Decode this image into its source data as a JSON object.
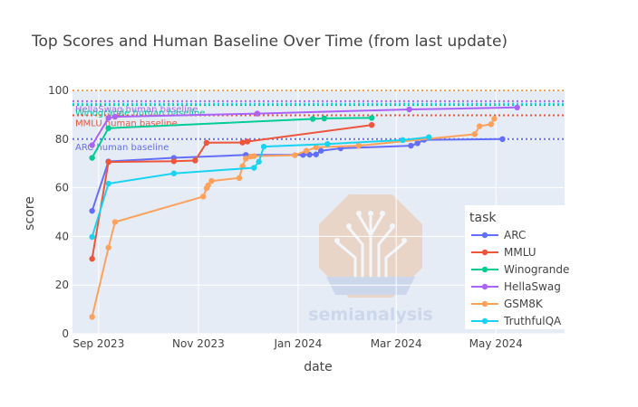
{
  "chart_data": {
    "type": "line",
    "title": "Top Scores and Human Baseline Over Time (from last update)",
    "xlabel": "date",
    "ylabel": "score",
    "xlim": [
      "2023-08-16",
      "2024-06-12"
    ],
    "ylim": [
      0,
      100
    ],
    "x_ticks": [
      "2023-09-01",
      "2023-11-01",
      "2024-01-01",
      "2024-03-01",
      "2024-05-01"
    ],
    "x_tick_labels": [
      "Sep 2023",
      "Nov 2023",
      "Jan 2024",
      "Mar 2024",
      "May 2024"
    ],
    "y_ticks": [
      0,
      20,
      40,
      60,
      80,
      100
    ],
    "grid": true,
    "plot_bgcolor": "#E5ECF6",
    "legend": {
      "title": "task",
      "position": "right"
    },
    "watermark": "semianalysis",
    "baselines": [
      {
        "label": "HellaSwag human baseline",
        "value": 95.6,
        "color": "#AB63FA"
      },
      {
        "label": "Winogrande human baseline",
        "value": 94.0,
        "color": "#00CC96"
      },
      {
        "label": "MMLU human baseline",
        "value": 89.8,
        "color": "#EF553B"
      },
      {
        "label": "ARC human baseline",
        "value": 80.0,
        "color": "#636EFA"
      },
      {
        "label": "",
        "value": 100,
        "color": "#FFA15A"
      },
      {
        "label": "",
        "value": 94.5,
        "color": "#19D3F3"
      }
    ],
    "series": [
      {
        "name": "ARC",
        "color": "#636EFA",
        "x": [
          "2023-08-28",
          "2023-09-07",
          "2023-10-17",
          "2023-11-30",
          "2024-01-04",
          "2024-01-08",
          "2024-01-12",
          "2024-01-15",
          "2024-01-27",
          "2024-03-10",
          "2024-03-14",
          "2024-03-18",
          "2024-05-05"
        ],
        "y": [
          50.5,
          70.8,
          72.3,
          73.5,
          73.5,
          73.6,
          73.7,
          75.2,
          76.2,
          77.3,
          78.3,
          79.7,
          80.0
        ]
      },
      {
        "name": "MMLU",
        "color": "#EF553B",
        "x": [
          "2023-08-28",
          "2023-09-07",
          "2023-10-17",
          "2023-10-30",
          "2023-11-06",
          "2023-11-28",
          "2023-12-01",
          "2024-02-15"
        ],
        "y": [
          30.8,
          70.6,
          70.9,
          71.2,
          78.5,
          78.6,
          79.0,
          85.8
        ]
      },
      {
        "name": "Winogrande",
        "color": "#00CC96",
        "x": [
          "2023-08-28",
          "2023-09-07",
          "2024-01-10",
          "2024-01-17",
          "2024-02-15"
        ],
        "y": [
          72.3,
          84.5,
          88.3,
          88.5,
          88.7
        ]
      },
      {
        "name": "HellaSwag",
        "color": "#AB63FA",
        "x": [
          "2023-08-28",
          "2023-09-07",
          "2023-09-11",
          "2023-12-07",
          "2024-03-09",
          "2024-05-14"
        ],
        "y": [
          77.5,
          88.7,
          89.2,
          90.5,
          92.2,
          93.0
        ]
      },
      {
        "name": "GSM8K",
        "color": "#FFA15A",
        "x": [
          "2023-08-28",
          "2023-09-07",
          "2023-09-11",
          "2023-11-04",
          "2023-11-06",
          "2023-11-07",
          "2023-11-09",
          "2023-11-26",
          "2023-11-28",
          "2023-11-30",
          "2023-12-03",
          "2023-12-05",
          "2023-12-30",
          "2024-01-06",
          "2024-01-12",
          "2024-02-07",
          "2024-04-18",
          "2024-04-21",
          "2024-04-28",
          "2024-04-30"
        ],
        "y": [
          6.9,
          35.4,
          45.9,
          56.4,
          59.8,
          61.0,
          62.8,
          64.0,
          68.9,
          72.0,
          72.8,
          73.0,
          73.4,
          75.2,
          76.6,
          77.3,
          82.0,
          85.3,
          86.1,
          88.4
        ]
      },
      {
        "name": "TruthfulQA",
        "color": "#19D3F3",
        "x": [
          "2023-08-28",
          "2023-09-07",
          "2023-10-17",
          "2023-12-05",
          "2023-12-08",
          "2023-12-11",
          "2024-01-19",
          "2024-03-05",
          "2024-03-21"
        ],
        "y": [
          39.8,
          61.7,
          65.9,
          68.2,
          70.7,
          76.9,
          78.0,
          79.6,
          80.8
        ]
      }
    ]
  }
}
